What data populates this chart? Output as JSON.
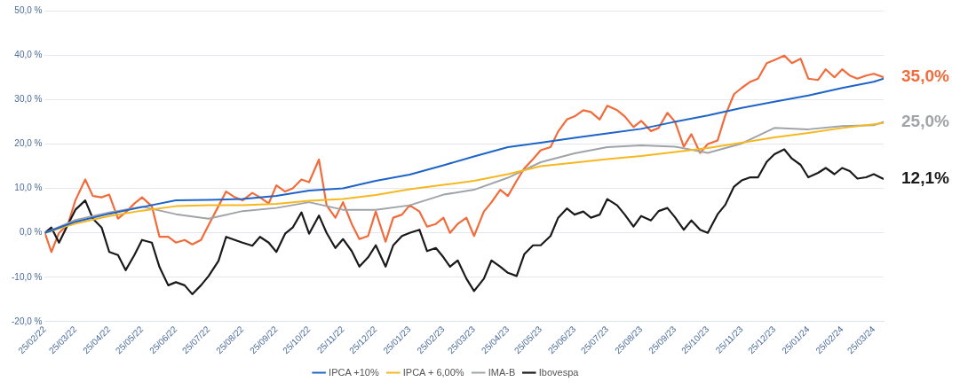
{
  "chart_data": {
    "type": "line",
    "legend": "bottom",
    "grid": "y",
    "marker": "none",
    "line_style": "solid",
    "xlim": [
      "2022-02-25",
      "2024-04-03"
    ],
    "xticks": [
      {
        "value": "2022-02-25",
        "label": "25/02/22"
      },
      {
        "value": "2022-03-25",
        "label": "25/03/22"
      },
      {
        "value": "2022-04-25",
        "label": "25/04/22"
      },
      {
        "value": "2022-05-25",
        "label": "25/05/22"
      },
      {
        "value": "2022-06-25",
        "label": "25/06/22"
      },
      {
        "value": "2022-07-25",
        "label": "25/07/22"
      },
      {
        "value": "2022-08-25",
        "label": "25/08/22"
      },
      {
        "value": "2022-09-25",
        "label": "25/09/22"
      },
      {
        "value": "2022-10-25",
        "label": "25/10/22"
      },
      {
        "value": "2022-11-25",
        "label": "25/11/22"
      },
      {
        "value": "2022-12-25",
        "label": "25/12/22"
      },
      {
        "value": "2023-01-25",
        "label": "25/01/23"
      },
      {
        "value": "2023-02-25",
        "label": "25/02/23"
      },
      {
        "value": "2023-03-25",
        "label": "25/03/23"
      },
      {
        "value": "2023-04-25",
        "label": "25/04/23"
      },
      {
        "value": "2023-05-25",
        "label": "25/05/23"
      },
      {
        "value": "2023-06-25",
        "label": "25/06/23"
      },
      {
        "value": "2023-07-25",
        "label": "25/07/23"
      },
      {
        "value": "2023-08-25",
        "label": "25/08/23"
      },
      {
        "value": "2023-09-25",
        "label": "25/09/23"
      },
      {
        "value": "2023-10-25",
        "label": "25/10/23"
      },
      {
        "value": "2023-11-25",
        "label": "25/11/23"
      },
      {
        "value": "2023-12-25",
        "label": "25/12/23"
      },
      {
        "value": "2024-01-25",
        "label": "25/01/24"
      },
      {
        "value": "2024-02-25",
        "label": "25/02/24"
      },
      {
        "value": "2024-03-25",
        "label": "25/03/24"
      }
    ],
    "ylim": [
      -20,
      50
    ],
    "yticks": [
      {
        "value": -20,
        "label": "-20,0 %"
      },
      {
        "value": -10,
        "label": "-10,0 %"
      },
      {
        "value": 0,
        "label": "0,0 %"
      },
      {
        "value": 10,
        "label": "10,0 %"
      },
      {
        "value": 20,
        "label": "20,0 %"
      },
      {
        "value": 30,
        "label": "30,0 %"
      },
      {
        "value": 40,
        "label": "40,0 %"
      },
      {
        "value": 50,
        "label": "50,0 %"
      }
    ],
    "x": [
      "2022-02-25",
      "2022-03-03",
      "2022-03-10",
      "2022-03-18",
      "2022-03-25",
      "2022-04-03",
      "2022-04-10",
      "2022-04-18",
      "2022-04-25",
      "2022-05-03",
      "2022-05-10",
      "2022-05-18",
      "2022-05-25",
      "2022-06-03",
      "2022-06-10",
      "2022-06-18",
      "2022-06-25",
      "2022-07-03",
      "2022-07-10",
      "2022-07-18",
      "2022-07-25",
      "2022-08-03",
      "2022-08-10",
      "2022-08-18",
      "2022-08-25",
      "2022-09-03",
      "2022-09-10",
      "2022-09-18",
      "2022-09-25",
      "2022-10-03",
      "2022-10-10",
      "2022-10-18",
      "2022-10-25",
      "2022-11-03",
      "2022-11-10",
      "2022-11-18",
      "2022-11-25",
      "2022-12-03",
      "2022-12-10",
      "2022-12-18",
      "2022-12-25",
      "2023-01-03",
      "2023-01-10",
      "2023-01-18",
      "2023-01-25",
      "2023-02-03",
      "2023-02-10",
      "2023-02-18",
      "2023-02-25",
      "2023-03-03",
      "2023-03-10",
      "2023-03-18",
      "2023-03-25",
      "2023-04-03",
      "2023-04-10",
      "2023-04-18",
      "2023-04-25",
      "2023-05-03",
      "2023-05-10",
      "2023-05-18",
      "2023-05-25",
      "2023-06-03",
      "2023-06-10",
      "2023-06-18",
      "2023-06-25",
      "2023-07-03",
      "2023-07-10",
      "2023-07-18",
      "2023-07-25",
      "2023-08-03",
      "2023-08-10",
      "2023-08-18",
      "2023-08-25",
      "2023-09-03",
      "2023-09-10",
      "2023-09-18",
      "2023-09-25",
      "2023-10-03",
      "2023-10-10",
      "2023-10-18",
      "2023-10-25",
      "2023-11-03",
      "2023-11-10",
      "2023-11-18",
      "2023-11-25",
      "2023-12-03",
      "2023-12-10",
      "2023-12-18",
      "2023-12-25",
      "2024-01-03",
      "2024-01-10",
      "2024-01-18",
      "2024-01-25",
      "2024-02-03",
      "2024-02-10",
      "2024-02-18",
      "2024-02-25",
      "2024-03-03",
      "2024-03-10",
      "2024-03-18",
      "2024-03-25",
      "2024-04-03"
    ],
    "series": [
      {
        "color": "#f26b3a",
        "values": [
          0,
          -4.3,
          0,
          1.8,
          7.3,
          12,
          8.3,
          8,
          8.6,
          3.2,
          4.6,
          6.6,
          8,
          6,
          -0.9,
          -0.9,
          -2.2,
          -1.6,
          -2.6,
          -1.6,
          1.8,
          6,
          9.3,
          8,
          7.3,
          9,
          8,
          6.6,
          10.7,
          9.3,
          10,
          12,
          11.4,
          16.5,
          6.2,
          3.4,
          6.9,
          2,
          -1.4,
          -0.7,
          4.8,
          -2,
          3.4,
          4.1,
          6.2,
          4.8,
          1.4,
          2,
          3.4,
          0,
          2,
          3.4,
          -0.7,
          4.8,
          6.9,
          9.7,
          8.3,
          11.7,
          14.5,
          16.6,
          18.6,
          19.3,
          22.8,
          25.5,
          26.2,
          27.6,
          27.2,
          25.5,
          28.6,
          27.6,
          26.2,
          23.8,
          25.2,
          22.9,
          23.6,
          27,
          25,
          19.4,
          22.2,
          18,
          20,
          20.8,
          26.4,
          31.2,
          32.6,
          34,
          34.7,
          38.2,
          38.9,
          39.9,
          38.2,
          39.2,
          34.7,
          34.4,
          36.8,
          35,
          36.8,
          35.4,
          34.7,
          35.4,
          35.8,
          35.0
        ]
      },
      {
        "name": "Ibovespa",
        "color": "#1a1a1a",
        "values": [
          0,
          1.2,
          -2.2,
          1.8,
          5.2,
          7.3,
          3.2,
          1.2,
          -4.3,
          -5,
          -8.4,
          -5,
          -1.6,
          -2.2,
          -7.7,
          -11.8,
          -11.1,
          -11.8,
          -13.8,
          -11.8,
          -9.7,
          -6.3,
          -0.9,
          -1.6,
          -2.2,
          -2.9,
          -0.9,
          -2.2,
          -4.3,
          -0.2,
          1.2,
          4.6,
          -0.2,
          3.9,
          0,
          -3.4,
          -1.4,
          -4.1,
          -7.6,
          -5.5,
          -2.8,
          -7.6,
          -2.8,
          -0.7,
          0,
          0.7,
          -4.1,
          -3.4,
          -5.5,
          -7.6,
          -6.2,
          -10.3,
          -13.1,
          -10.3,
          -6.2,
          -7.6,
          -9,
          -9.7,
          -4.8,
          -2.8,
          -2.8,
          -0.7,
          3.4,
          5.5,
          4.1,
          4.8,
          3.4,
          4.1,
          7.6,
          6.2,
          4.1,
          1.4,
          3.8,
          2.8,
          4.9,
          5.6,
          3.5,
          0.7,
          2.8,
          0.7,
          0,
          4.2,
          6.3,
          10.4,
          11.8,
          12.5,
          12.5,
          16,
          17.7,
          18.8,
          16.7,
          15.3,
          12.5,
          13.5,
          14.6,
          13.2,
          14.6,
          13.9,
          12.2,
          12.5,
          13.2,
          12.1
        ]
      },
      {
        "name": "IMA-B",
        "color": "#a0a4a8",
        "x": [
          "2022-02-25",
          "2022-03-25",
          "2022-04-25",
          "2022-05-25",
          "2022-06-25",
          "2022-07-25",
          "2022-08-25",
          "2022-09-25",
          "2022-10-25",
          "2022-11-25",
          "2022-12-25",
          "2023-01-25",
          "2023-02-25",
          "2023-03-25",
          "2023-04-25",
          "2023-05-25",
          "2023-06-25",
          "2023-07-25",
          "2023-08-25",
          "2023-09-25",
          "2023-10-25",
          "2023-11-25",
          "2023-12-25",
          "2024-01-25",
          "2024-02-25",
          "2024-03-25",
          "2024-04-03"
        ],
        "values": [
          0,
          2.9,
          4.6,
          5.9,
          4.2,
          3.2,
          4.9,
          5.6,
          6.9,
          5.2,
          5.2,
          6.2,
          8.6,
          9.7,
          12.4,
          15.9,
          17.9,
          19.3,
          19.7,
          19.4,
          18,
          20.1,
          23.6,
          23.3,
          24,
          24.2,
          25.0
        ]
      },
      {
        "name": "IPCA + 6,00%",
        "color": "#f5b820",
        "x": [
          "2022-02-25",
          "2022-03-25",
          "2022-04-25",
          "2022-05-25",
          "2022-06-25",
          "2022-07-25",
          "2022-08-25",
          "2022-09-25",
          "2022-10-25",
          "2022-11-25",
          "2022-12-25",
          "2023-01-25",
          "2023-02-25",
          "2023-03-25",
          "2023-04-25",
          "2023-05-25",
          "2023-06-25",
          "2023-07-25",
          "2023-08-25",
          "2023-09-25",
          "2023-10-25",
          "2023-11-25",
          "2023-12-25",
          "2024-01-25",
          "2024-02-25",
          "2024-03-25",
          "2024-04-03"
        ],
        "values": [
          0,
          2.1,
          3.8,
          5,
          6,
          6.2,
          6.2,
          6.5,
          7.2,
          7.6,
          8.5,
          9.8,
          10.8,
          11.7,
          13.2,
          15,
          15.8,
          16.6,
          17.3,
          18.2,
          19.1,
          20.3,
          21.5,
          22.5,
          23.6,
          24.4,
          24.7
        ]
      },
      {
        "name": "IPCA +10%",
        "color": "#1e64c8",
        "x": [
          "2022-02-25",
          "2022-03-25",
          "2022-04-25",
          "2022-05-25",
          "2022-06-25",
          "2022-07-25",
          "2022-08-25",
          "2022-09-25",
          "2022-10-25",
          "2022-11-25",
          "2022-12-25",
          "2023-01-25",
          "2023-02-25",
          "2023-03-25",
          "2023-04-25",
          "2023-05-25",
          "2023-06-25",
          "2023-07-25",
          "2023-08-25",
          "2023-09-25",
          "2023-10-25",
          "2023-11-25",
          "2023-12-25",
          "2024-01-25",
          "2024-02-25",
          "2024-03-25",
          "2024-04-03"
        ],
        "values": [
          0,
          2.5,
          4.3,
          5.8,
          7.3,
          7.4,
          7.6,
          8.3,
          9.5,
          10,
          11.7,
          13.1,
          15.2,
          17.2,
          19.3,
          20.3,
          21.4,
          22.4,
          23.4,
          25,
          26.4,
          28.1,
          29.5,
          30.9,
          32.6,
          34,
          34.7
        ]
      }
    ],
    "annotations": [
      {
        "text": "35,0%",
        "x": "2024-04-03",
        "y": 35
      },
      {
        "text": "25,0%",
        "x": "2024-04-03",
        "y": 25
      },
      {
        "text": "12,1%",
        "x": "2024-04-03",
        "y": 12.1
      }
    ]
  }
}
